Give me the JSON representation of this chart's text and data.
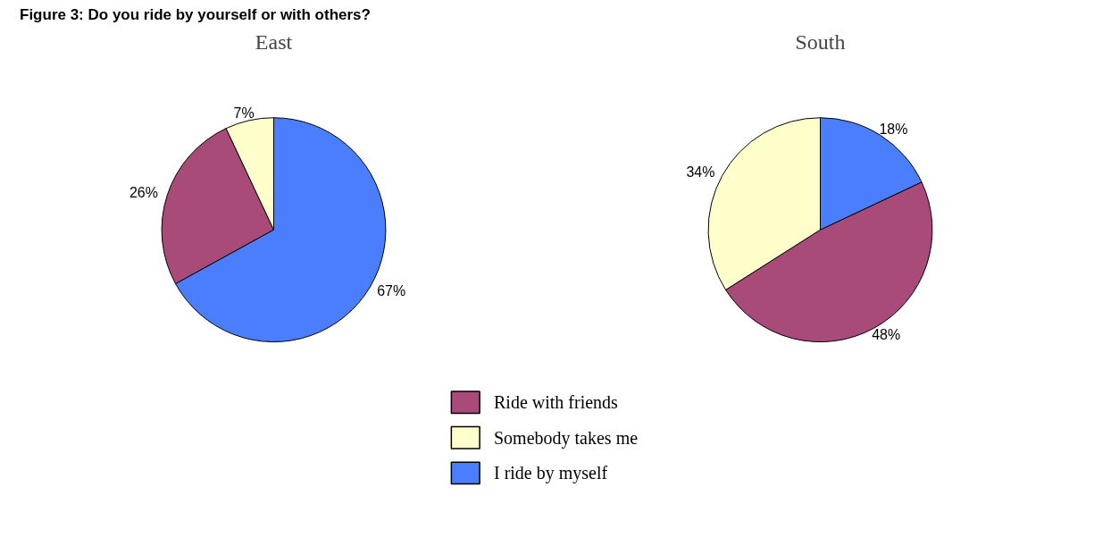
{
  "chart_data": [
    {
      "type": "pie",
      "title": "East",
      "annotations": [
        "Figure 3: Do you ride by yourself or with others?"
      ],
      "categories": [
        "Ride with friends",
        "Somebody takes me",
        "I ride by myself"
      ],
      "values": [
        26,
        7,
        67
      ],
      "value_labels": [
        "26%",
        "7%",
        "67%"
      ],
      "colors": [
        "#a84b78",
        "#ffffcc",
        "#4a7eff"
      ],
      "legend": "bottom"
    },
    {
      "type": "pie",
      "title": "South",
      "values": [
        48,
        34,
        18
      ],
      "value_labels": [
        "48%",
        "34%",
        "18%"
      ],
      "colors": [
        "#a84b78",
        "#ffffcc",
        "#4a7eff"
      ]
    }
  ]
}
